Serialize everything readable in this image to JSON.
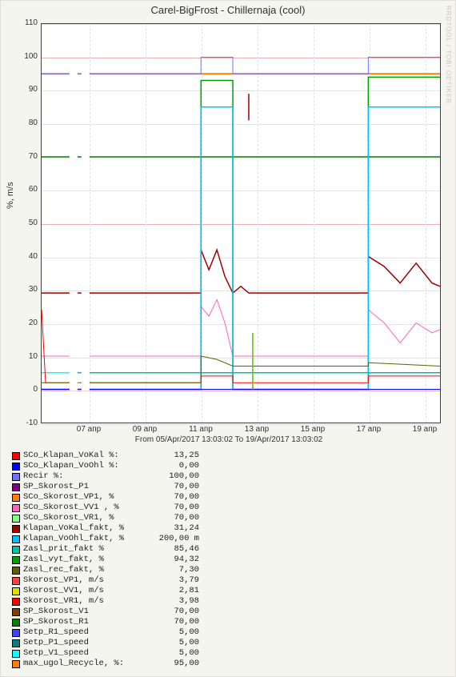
{
  "title": "Carel-BigFrost - Chillernaja (cool)",
  "watermark": "RRDTOOL / TOBI OETIKER",
  "ylabel": "%, m/s",
  "background_color": "#f5f5f0",
  "plot_background": "#ffffff",
  "grid_color": "#e3e3e3",
  "major_grid_color": "#c02020",
  "y_axis": {
    "min": -10,
    "max": 110,
    "ticks": [
      -10,
      0,
      10,
      20,
      30,
      40,
      50,
      60,
      70,
      80,
      90,
      100,
      110
    ]
  },
  "x_axis": {
    "ticks": [
      "07 апр",
      "09 апр",
      "11 апр",
      "13 апр",
      "15 апр",
      "17 апр",
      "19 апр"
    ],
    "tick_positions_pct": [
      12,
      26,
      40,
      54,
      68,
      82,
      96
    ],
    "range_label": "From 05/Apr/2017 13:03:02 To 19/Apr/2017 13:03:02"
  },
  "legend": [
    {
      "color": "#ff0000",
      "label": "SCo_Klapan_VoKal %:",
      "value": "13,25"
    },
    {
      "color": "#0000ff",
      "label": "SCo_Klapan_VoOhl %:",
      "value": "0,00"
    },
    {
      "color": "#7070ff",
      "label": "Recir %:          ",
      "value": "100,00"
    },
    {
      "color": "#800080",
      "label": "SP_Skorost_P1",
      "value": "70,00"
    },
    {
      "color": "#ff8000",
      "label": "SCo_Skorost_VP1, %",
      "value": "70,00"
    },
    {
      "color": "#ff60c0",
      "label": "SCo_Skorost_VV1 , %",
      "value": "70,00"
    },
    {
      "color": "#80ff80",
      "label": "SCo_Skorost_VR1, %",
      "value": "70,00"
    },
    {
      "color": "#a00000",
      "label": "Klapan_VoKal_fakt, %",
      "value": "31,24"
    },
    {
      "color": "#00c0ff",
      "label": "Klapan_VoOhl_fakt, %",
      "value": "200,00 m"
    },
    {
      "color": "#00c0a0",
      "label": "Zasl_prit_fakt %",
      "value": "85,46"
    },
    {
      "color": "#00a000",
      "label": "Zasl_vyt_fakt, %",
      "value": "94,32"
    },
    {
      "color": "#606000",
      "label": "Zasl_rec_fakt, %",
      "value": "7,30"
    },
    {
      "color": "#ff4040",
      "label": "Skorost_VP1, m/s",
      "value": "3,79"
    },
    {
      "color": "#e0e000",
      "label": "Skorost_VV1, m/s",
      "value": "2,81"
    },
    {
      "color": "#ff0000",
      "label": "Skorost_VR1, m/s",
      "value": "3,98"
    },
    {
      "color": "#804000",
      "label": "SP_Skorost_V1",
      "value": "70,00"
    },
    {
      "color": "#008000",
      "label": "SP_Skorost_R1",
      "value": "70,00"
    },
    {
      "color": "#4040ff",
      "label": "Setp_R1_speed",
      "value": "5,00"
    },
    {
      "color": "#008080",
      "label": "Setp_P1_speed",
      "value": "5,00"
    },
    {
      "color": "#00ffff",
      "label": "Setp_V1_speed",
      "value": "5,00"
    },
    {
      "color": "#ff8000",
      "label": "max_ugol_Recycle, %:",
      "value": "95,00"
    }
  ],
  "series": [
    {
      "name": "max_ugol_recycle",
      "color": "#ff8000",
      "width": 2,
      "points": [
        [
          0,
          95
        ],
        [
          100,
          95
        ]
      ]
    },
    {
      "name": "sp_skorost_70_green",
      "color": "#008000",
      "width": 1.5,
      "points": [
        [
          0,
          70
        ],
        [
          100,
          70
        ]
      ]
    },
    {
      "name": "setp_5_teal",
      "color": "#00c0a0",
      "width": 1.5,
      "points": [
        [
          0,
          5
        ],
        [
          100,
          5
        ]
      ]
    },
    {
      "name": "setp_5_cyan",
      "color": "#00ffff",
      "width": 1.5,
      "points": [
        [
          0,
          5
        ],
        [
          8,
          5
        ]
      ]
    },
    {
      "name": "recir_purple",
      "color": "#7070ff",
      "width": 1,
      "points": [
        [
          0,
          95
        ],
        [
          40,
          95
        ],
        [
          40,
          100
        ],
        [
          48,
          100
        ],
        [
          48,
          95
        ],
        [
          82,
          95
        ],
        [
          82,
          100
        ],
        [
          100,
          100
        ]
      ]
    },
    {
      "name": "skorost_10_pink",
      "color": "#ff60c0",
      "width": 1,
      "points": [
        [
          0,
          10
        ],
        [
          8,
          10
        ]
      ]
    },
    {
      "name": "skorost_10_pink2",
      "color": "#ff60c0",
      "width": 1,
      "points": [
        [
          12,
          10
        ],
        [
          40,
          10
        ],
        [
          40,
          25
        ],
        [
          42,
          22
        ],
        [
          44,
          27
        ],
        [
          46,
          20
        ],
        [
          48,
          10
        ],
        [
          82,
          10
        ],
        [
          82,
          24
        ],
        [
          86,
          20
        ],
        [
          90,
          14
        ],
        [
          94,
          20
        ],
        [
          98,
          17
        ],
        [
          100,
          18
        ]
      ]
    },
    {
      "name": "klapan_vokal_maroon",
      "color": "#a00000",
      "width": 1.5,
      "points": [
        [
          0,
          29
        ],
        [
          40,
          29
        ],
        [
          40,
          42
        ],
        [
          42,
          36
        ],
        [
          44,
          42
        ],
        [
          46,
          34
        ],
        [
          48,
          29
        ],
        [
          50,
          31
        ],
        [
          52,
          29
        ],
        [
          82,
          29
        ],
        [
          82,
          40
        ],
        [
          86,
          37
        ],
        [
          90,
          32
        ],
        [
          94,
          38
        ],
        [
          98,
          32
        ],
        [
          100,
          31
        ]
      ]
    },
    {
      "name": "zasl_vyt_green",
      "color": "#00a000",
      "width": 1.5,
      "points": [
        [
          0,
          0
        ],
        [
          40,
          0
        ],
        [
          40,
          93
        ],
        [
          48,
          93
        ],
        [
          48,
          0
        ],
        [
          82,
          0
        ],
        [
          82,
          94
        ],
        [
          100,
          94
        ]
      ]
    },
    {
      "name": "zasl_prit_cyan",
      "color": "#00c0ff",
      "width": 1.5,
      "points": [
        [
          0,
          0
        ],
        [
          40,
          0
        ],
        [
          40,
          85
        ],
        [
          48,
          85
        ],
        [
          48,
          0
        ],
        [
          82,
          0
        ],
        [
          82,
          85
        ],
        [
          100,
          85
        ]
      ]
    },
    {
      "name": "sco_klapan_vokal_red",
      "color": "#ff0000",
      "width": 1,
      "points": [
        [
          0,
          24
        ],
        [
          1,
          2
        ],
        [
          8,
          2
        ]
      ]
    },
    {
      "name": "sco_klapan_vokal_red2",
      "color": "#ff0000",
      "width": 1,
      "points": [
        [
          12,
          2
        ],
        [
          40,
          2
        ],
        [
          40,
          4
        ],
        [
          48,
          4
        ],
        [
          48,
          2
        ],
        [
          82,
          2
        ],
        [
          82,
          4
        ],
        [
          100,
          4
        ]
      ]
    },
    {
      "name": "zasl_rec_olive",
      "color": "#606000",
      "width": 1,
      "points": [
        [
          0,
          2
        ],
        [
          40,
          2
        ],
        [
          40,
          10
        ],
        [
          44,
          9
        ],
        [
          48,
          7
        ],
        [
          82,
          7
        ],
        [
          82,
          8
        ],
        [
          100,
          7
        ]
      ]
    },
    {
      "name": "sco_klapan_voohl_blue",
      "color": "#0000ff",
      "width": 1,
      "points": [
        [
          0,
          0
        ],
        [
          100,
          0
        ]
      ]
    },
    {
      "name": "spike_maroon",
      "color": "#a00000",
      "width": 1.5,
      "points": [
        [
          52,
          81
        ],
        [
          52,
          89
        ]
      ]
    },
    {
      "name": "spike_green",
      "color": "#60c000",
      "width": 1.5,
      "points": [
        [
          53,
          0
        ],
        [
          53,
          17
        ]
      ]
    }
  ]
}
